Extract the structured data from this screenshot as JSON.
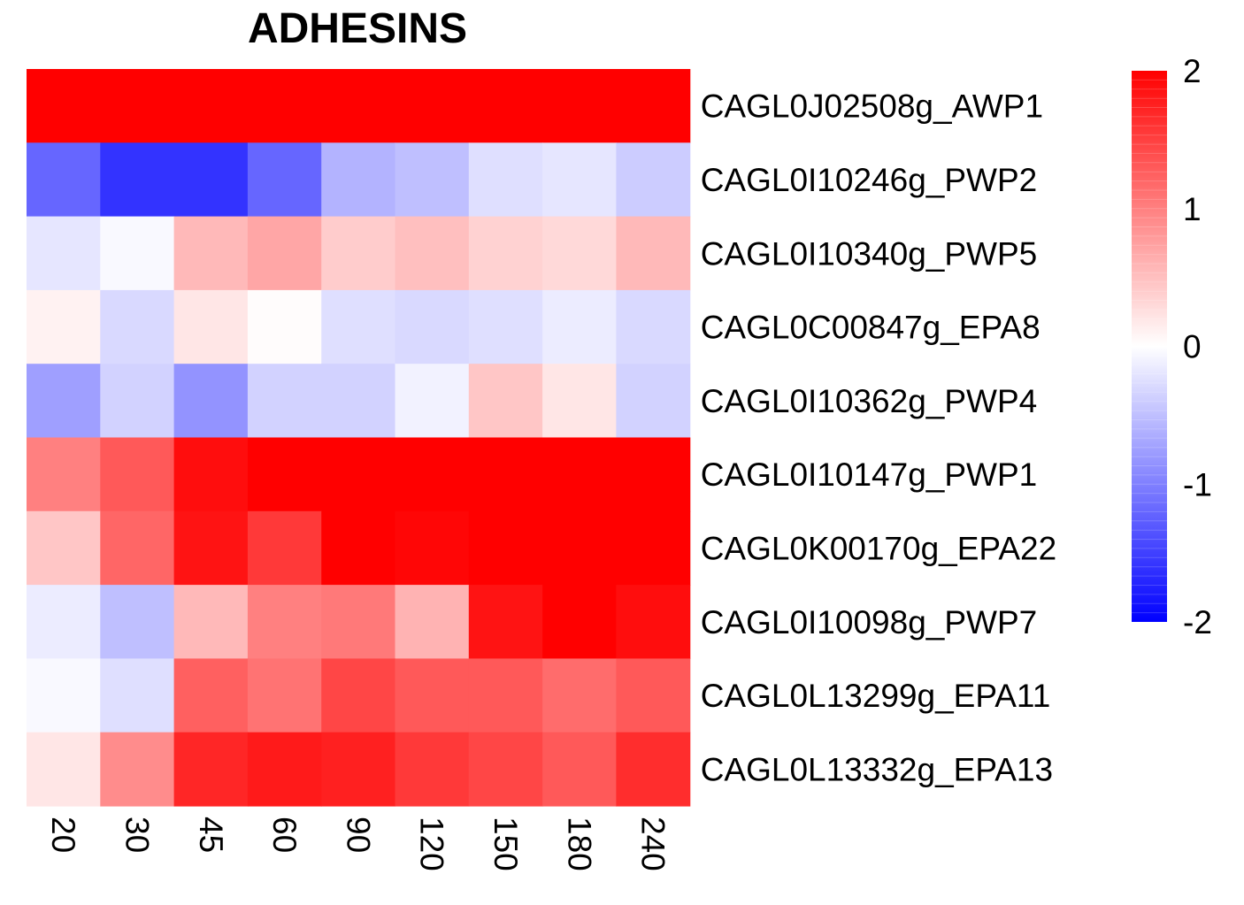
{
  "chart_data": {
    "type": "heatmap",
    "title": "ADHESINS",
    "columns": [
      "20",
      "30",
      "45",
      "60",
      "90",
      "120",
      "150",
      "180",
      "240"
    ],
    "rows": [
      "CAGL0J02508g_AWP1",
      "CAGL0I10246g_PWP2",
      "CAGL0I10340g_PWP5",
      "CAGL0C00847g_EPA8",
      "CAGL0I10362g_PWP4",
      "CAGL0I10147g_PWP1",
      "CAGL0K00170g_EPA22",
      "CAGL0I10098g_PWP7",
      "CAGL0L13299g_EPA11",
      "CAGL0L13332g_EPA13"
    ],
    "values": [
      [
        2.0,
        2.0,
        2.0,
        2.0,
        2.0,
        2.0,
        2.0,
        2.0,
        2.0
      ],
      [
        -1.2,
        -1.6,
        -1.6,
        -1.2,
        -0.6,
        -0.5,
        -0.25,
        -0.2,
        -0.4
      ],
      [
        -0.2,
        -0.05,
        0.55,
        0.7,
        0.4,
        0.5,
        0.35,
        0.3,
        0.55
      ],
      [
        0.1,
        -0.3,
        0.2,
        0.02,
        -0.25,
        -0.3,
        -0.25,
        -0.15,
        -0.3
      ],
      [
        -0.75,
        -0.35,
        -0.85,
        -0.35,
        -0.35,
        -0.1,
        0.45,
        0.2,
        -0.35
      ],
      [
        1.0,
        1.3,
        1.9,
        2.0,
        2.0,
        2.0,
        2.0,
        2.0,
        2.0
      ],
      [
        0.45,
        1.2,
        1.85,
        1.55,
        2.0,
        1.95,
        2.0,
        2.0,
        2.0
      ],
      [
        -0.15,
        -0.5,
        0.55,
        1.0,
        1.05,
        0.6,
        1.85,
        2.0,
        1.9
      ],
      [
        -0.05,
        -0.25,
        1.25,
        1.1,
        1.45,
        1.3,
        1.3,
        1.15,
        1.3
      ],
      [
        0.2,
        0.9,
        1.7,
        1.8,
        1.75,
        1.55,
        1.45,
        1.3,
        1.65
      ]
    ],
    "color_scale": {
      "min": -2,
      "max": 2,
      "low_color": "#0000ff",
      "mid_color": "#ffffff",
      "high_color": "#ff0000",
      "ticks": [
        "2",
        "1",
        "0",
        "-1",
        "-2"
      ],
      "tick_values": [
        2,
        1,
        0,
        -1,
        -2
      ]
    },
    "legend_position": "right"
  }
}
